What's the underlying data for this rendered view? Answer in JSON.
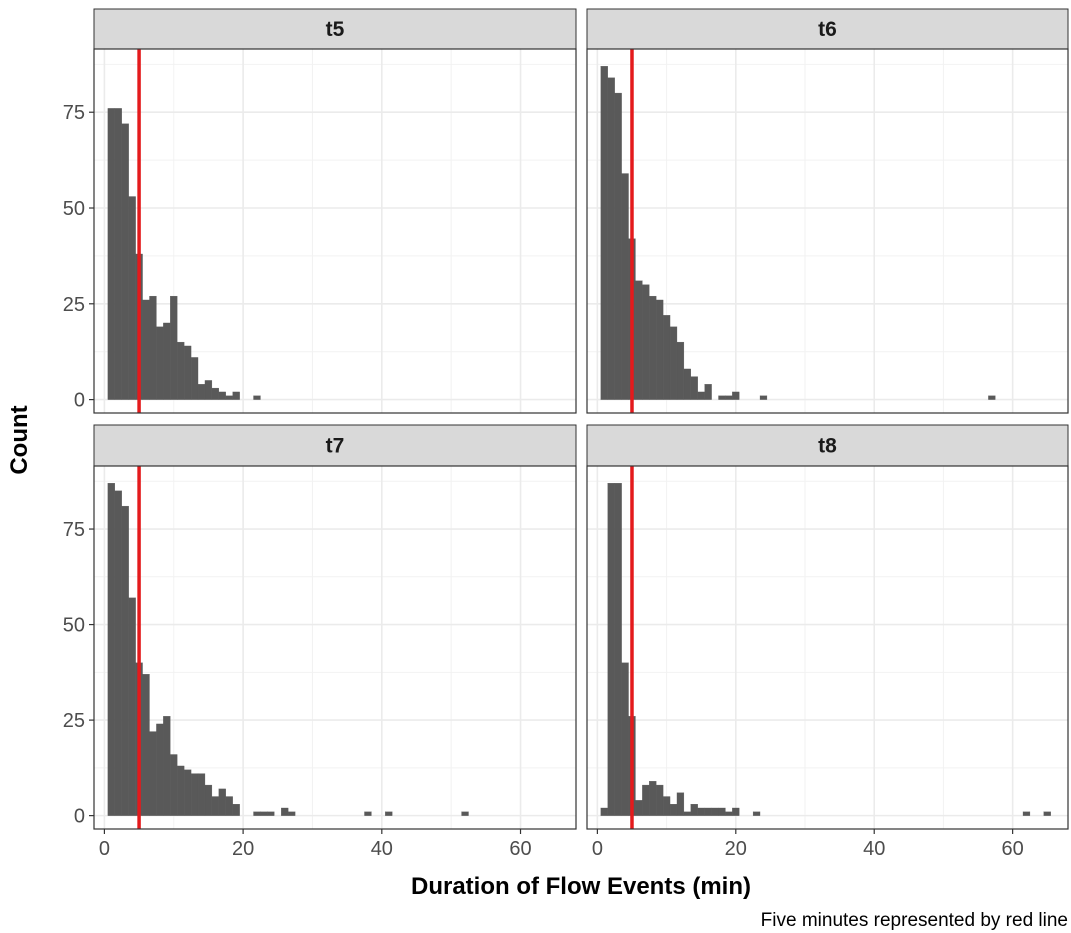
{
  "chart_data": {
    "type": "bar",
    "subtype": "faceted-histogram",
    "xlabel": "Duration of Flow Events (min)",
    "ylabel": "Count",
    "caption": "Five minutes represented by red line",
    "xlim": [
      -1.5,
      68
    ],
    "ylim": [
      -3.5,
      91.5
    ],
    "x_ticks": [
      0,
      20,
      40,
      60
    ],
    "y_ticks": [
      0,
      25,
      50,
      75
    ],
    "bin_width": 1,
    "reference_line": {
      "x": 5,
      "color": "#e41a1c"
    },
    "bar_color": "#595959",
    "grid": true,
    "facets": [
      {
        "label": "t5",
        "bins": [
          {
            "x": 1,
            "count": 76
          },
          {
            "x": 2,
            "count": 76
          },
          {
            "x": 3,
            "count": 72
          },
          {
            "x": 4,
            "count": 53
          },
          {
            "x": 5,
            "count": 38
          },
          {
            "x": 6,
            "count": 26
          },
          {
            "x": 7,
            "count": 27
          },
          {
            "x": 8,
            "count": 19
          },
          {
            "x": 9,
            "count": 20
          },
          {
            "x": 10,
            "count": 27
          },
          {
            "x": 11,
            "count": 15
          },
          {
            "x": 12,
            "count": 14
          },
          {
            "x": 13,
            "count": 11
          },
          {
            "x": 14,
            "count": 4
          },
          {
            "x": 15,
            "count": 5
          },
          {
            "x": 16,
            "count": 3
          },
          {
            "x": 17,
            "count": 2
          },
          {
            "x": 18,
            "count": 1
          },
          {
            "x": 19,
            "count": 2
          },
          {
            "x": 22,
            "count": 1
          }
        ]
      },
      {
        "label": "t6",
        "bins": [
          {
            "x": 1,
            "count": 87
          },
          {
            "x": 2,
            "count": 84
          },
          {
            "x": 3,
            "count": 80
          },
          {
            "x": 4,
            "count": 59
          },
          {
            "x": 5,
            "count": 42
          },
          {
            "x": 6,
            "count": 31
          },
          {
            "x": 7,
            "count": 30
          },
          {
            "x": 8,
            "count": 27
          },
          {
            "x": 9,
            "count": 26
          },
          {
            "x": 10,
            "count": 22
          },
          {
            "x": 11,
            "count": 19
          },
          {
            "x": 12,
            "count": 15
          },
          {
            "x": 13,
            "count": 8
          },
          {
            "x": 14,
            "count": 6
          },
          {
            "x": 15,
            "count": 2
          },
          {
            "x": 16,
            "count": 4
          },
          {
            "x": 18,
            "count": 1
          },
          {
            "x": 19,
            "count": 1
          },
          {
            "x": 20,
            "count": 2
          },
          {
            "x": 24,
            "count": 1
          },
          {
            "x": 57,
            "count": 1
          }
        ]
      },
      {
        "label": "t7",
        "bins": [
          {
            "x": 1,
            "count": 87
          },
          {
            "x": 2,
            "count": 85
          },
          {
            "x": 3,
            "count": 81
          },
          {
            "x": 4,
            "count": 57
          },
          {
            "x": 5,
            "count": 40
          },
          {
            "x": 6,
            "count": 37
          },
          {
            "x": 7,
            "count": 22
          },
          {
            "x": 8,
            "count": 24
          },
          {
            "x": 9,
            "count": 26
          },
          {
            "x": 10,
            "count": 16
          },
          {
            "x": 11,
            "count": 13
          },
          {
            "x": 12,
            "count": 12
          },
          {
            "x": 13,
            "count": 11
          },
          {
            "x": 14,
            "count": 11
          },
          {
            "x": 15,
            "count": 8
          },
          {
            "x": 16,
            "count": 5
          },
          {
            "x": 17,
            "count": 7
          },
          {
            "x": 18,
            "count": 5
          },
          {
            "x": 19,
            "count": 3
          },
          {
            "x": 22,
            "count": 1
          },
          {
            "x": 23,
            "count": 1
          },
          {
            "x": 24,
            "count": 1
          },
          {
            "x": 26,
            "count": 2
          },
          {
            "x": 27,
            "count": 1
          },
          {
            "x": 38,
            "count": 1
          },
          {
            "x": 41,
            "count": 1
          },
          {
            "x": 52,
            "count": 1
          }
        ]
      },
      {
        "label": "t8",
        "bins": [
          {
            "x": 1,
            "count": 2
          },
          {
            "x": 2,
            "count": 87
          },
          {
            "x": 3,
            "count": 87
          },
          {
            "x": 4,
            "count": 40
          },
          {
            "x": 5,
            "count": 26
          },
          {
            "x": 6,
            "count": 4
          },
          {
            "x": 7,
            "count": 8
          },
          {
            "x": 8,
            "count": 9
          },
          {
            "x": 9,
            "count": 8
          },
          {
            "x": 10,
            "count": 5
          },
          {
            "x": 11,
            "count": 3
          },
          {
            "x": 12,
            "count": 6
          },
          {
            "x": 13,
            "count": 1
          },
          {
            "x": 14,
            "count": 3
          },
          {
            "x": 15,
            "count": 2
          },
          {
            "x": 16,
            "count": 2
          },
          {
            "x": 17,
            "count": 2
          },
          {
            "x": 18,
            "count": 2
          },
          {
            "x": 19,
            "count": 1
          },
          {
            "x": 20,
            "count": 2
          },
          {
            "x": 23,
            "count": 1
          },
          {
            "x": 62,
            "count": 1
          },
          {
            "x": 65,
            "count": 1
          }
        ]
      }
    ]
  }
}
